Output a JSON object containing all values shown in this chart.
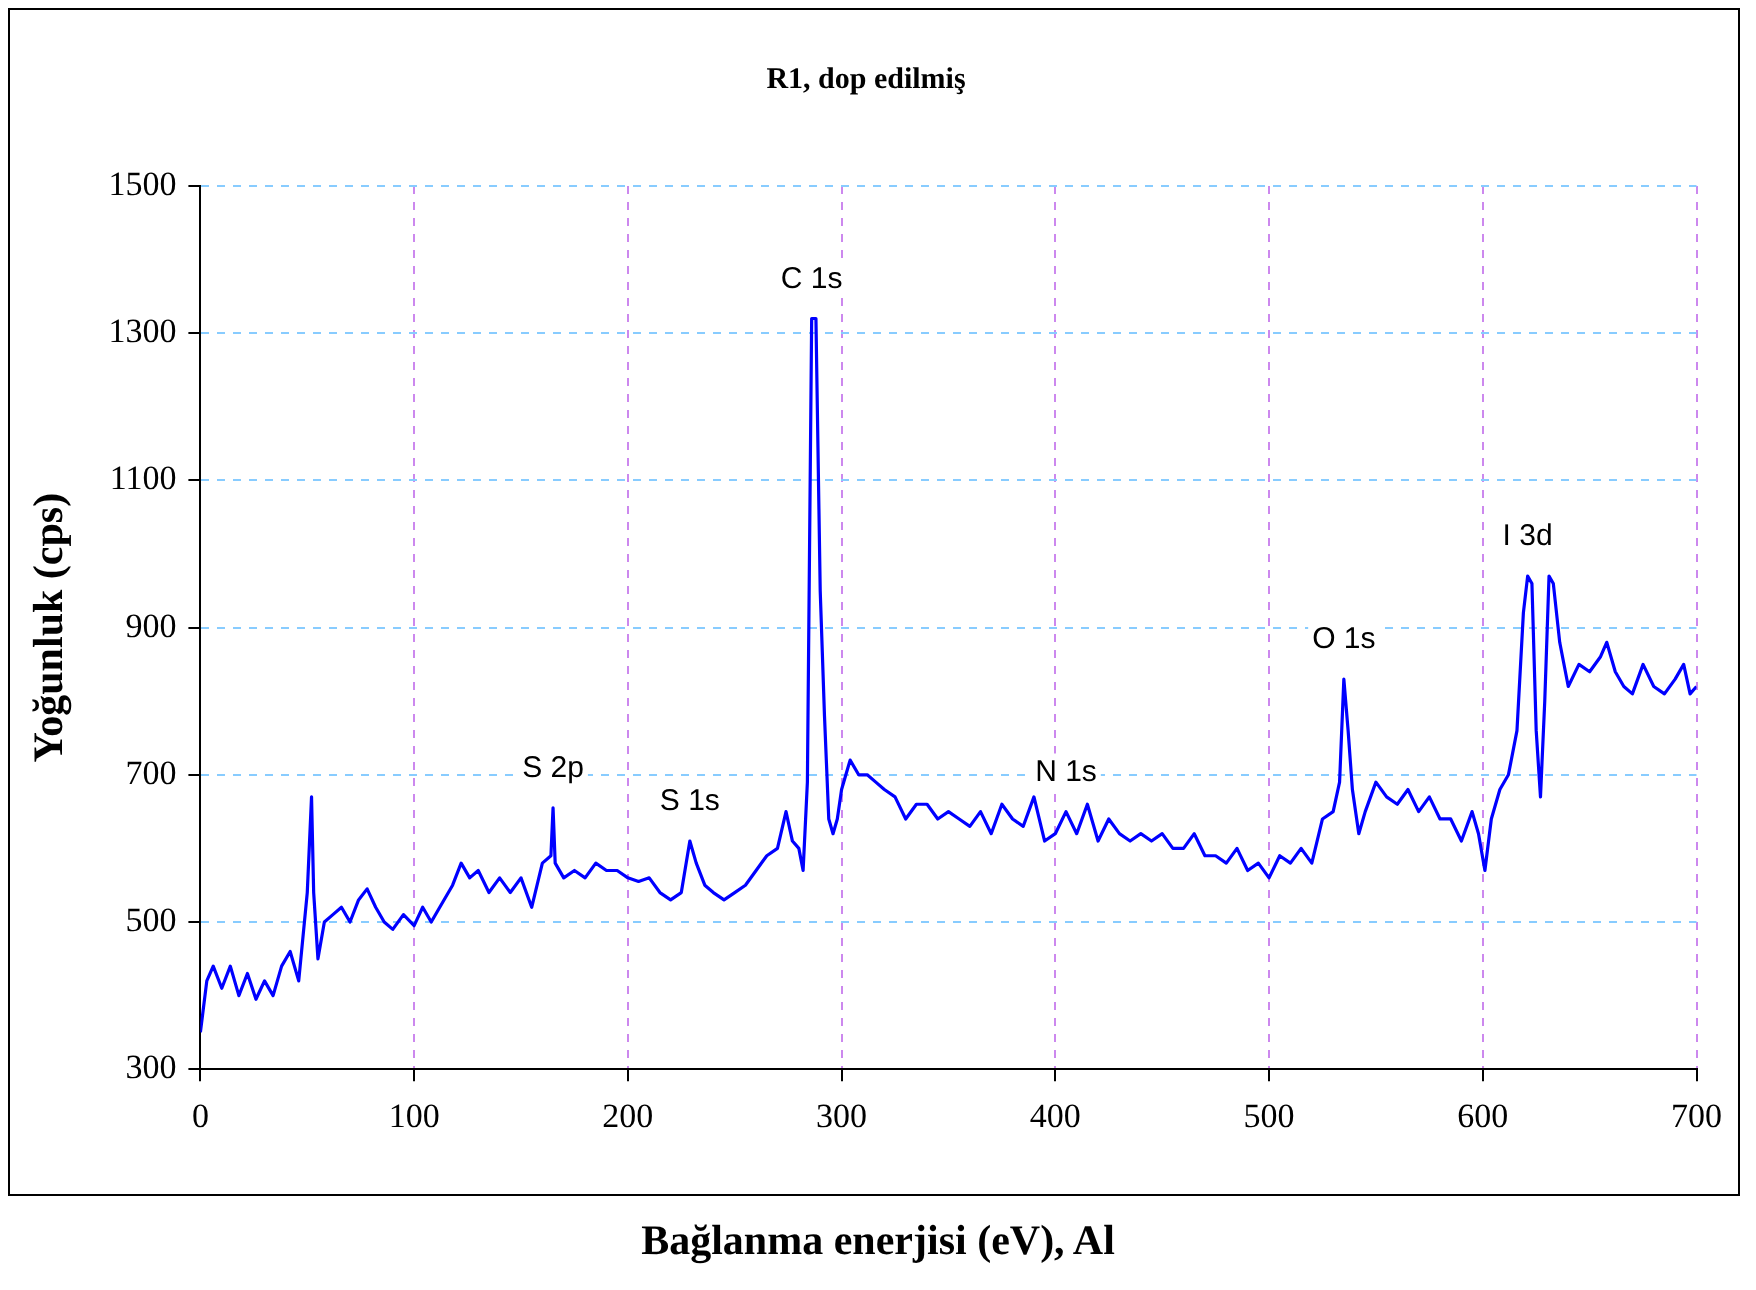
{
  "chart_data": {
    "type": "line",
    "title": "R1, dop edilmiş",
    "xlabel": "Bağlanma enerjisi (eV), Al",
    "ylabel": "Yoğunluk (cps)",
    "xlim": [
      0,
      700
    ],
    "xticks": [
      0,
      100,
      200,
      300,
      400,
      500,
      600,
      700
    ],
    "ylim": [
      300,
      1500
    ],
    "yticks": [
      300,
      500,
      700,
      900,
      1100,
      1300,
      1500
    ],
    "grid": true,
    "legend": false,
    "marker": "none",
    "line_style": "solid",
    "annotations": [
      {
        "text": "C 1s",
        "x": 286,
        "y": 1320
      },
      {
        "text": "S 2p",
        "x": 165,
        "y": 655
      },
      {
        "text": "S 1s",
        "x": 229,
        "y": 610
      },
      {
        "text": "N 1s",
        "x": 405,
        "y": 650
      },
      {
        "text": "O 1s",
        "x": 535,
        "y": 830
      },
      {
        "text": "I 3d",
        "x": 621,
        "y": 970
      }
    ],
    "series": [
      {
        "color": "#0000ff",
        "x": [
          0,
          3,
          6,
          10,
          14,
          18,
          22,
          26,
          30,
          34,
          38,
          42,
          46,
          50,
          52,
          53,
          55,
          58,
          62,
          66,
          70,
          74,
          78,
          82,
          86,
          90,
          95,
          100,
          104,
          108,
          112,
          118,
          122,
          126,
          130,
          135,
          140,
          145,
          150,
          155,
          160,
          164,
          165,
          166,
          170,
          175,
          180,
          185,
          190,
          195,
          200,
          205,
          210,
          215,
          220,
          225,
          229,
          232,
          236,
          240,
          245,
          250,
          255,
          260,
          265,
          270,
          274,
          277,
          280,
          282,
          284,
          286,
          288,
          290,
          292,
          294,
          296,
          298,
          300,
          304,
          308,
          312,
          316,
          320,
          325,
          330,
          335,
          340,
          345,
          350,
          355,
          360,
          365,
          370,
          375,
          380,
          385,
          390,
          395,
          400,
          405,
          410,
          415,
          420,
          425,
          430,
          435,
          440,
          445,
          450,
          455,
          460,
          465,
          470,
          475,
          480,
          485,
          490,
          495,
          500,
          505,
          510,
          515,
          520,
          525,
          530,
          533,
          535,
          537,
          539,
          542,
          545,
          550,
          555,
          560,
          565,
          570,
          575,
          580,
          585,
          590,
          595,
          598,
          601,
          604,
          608,
          612,
          616,
          619,
          621,
          623,
          625,
          627,
          629,
          631,
          633,
          636,
          640,
          645,
          650,
          655,
          658,
          662,
          666,
          670,
          675,
          680,
          685,
          690,
          694,
          697,
          700
        ],
        "values": [
          350,
          420,
          440,
          410,
          440,
          400,
          430,
          395,
          420,
          400,
          440,
          460,
          420,
          540,
          670,
          540,
          450,
          500,
          510,
          520,
          500,
          530,
          545,
          520,
          500,
          490,
          510,
          495,
          520,
          500,
          520,
          550,
          580,
          560,
          570,
          540,
          560,
          540,
          560,
          520,
          580,
          590,
          655,
          580,
          560,
          570,
          560,
          580,
          570,
          570,
          560,
          555,
          560,
          540,
          530,
          540,
          610,
          580,
          550,
          540,
          530,
          540,
          550,
          570,
          590,
          600,
          650,
          610,
          600,
          570,
          690,
          1320,
          1320,
          950,
          780,
          640,
          620,
          640,
          680,
          720,
          700,
          700,
          690,
          680,
          670,
          640,
          660,
          660,
          640,
          650,
          640,
          630,
          650,
          620,
          660,
          640,
          630,
          670,
          610,
          620,
          650,
          620,
          660,
          610,
          640,
          620,
          610,
          620,
          610,
          620,
          600,
          600,
          620,
          590,
          590,
          580,
          600,
          570,
          580,
          560,
          590,
          580,
          600,
          580,
          640,
          650,
          690,
          830,
          760,
          680,
          620,
          650,
          690,
          670,
          660,
          680,
          650,
          670,
          640,
          640,
          610,
          650,
          620,
          570,
          640,
          680,
          700,
          760,
          920,
          970,
          960,
          760,
          670,
          800,
          970,
          960,
          880,
          820,
          850,
          840,
          860,
          880,
          840,
          820,
          810,
          850,
          820,
          810,
          830,
          850,
          810,
          820
        ]
      }
    ]
  }
}
